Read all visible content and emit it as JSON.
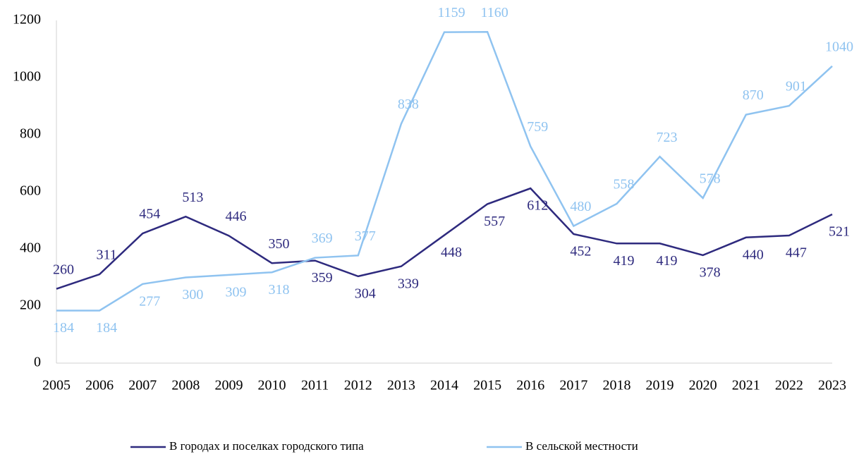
{
  "chart_data": {
    "type": "line",
    "categories": [
      "2005",
      "2006",
      "2007",
      "2008",
      "2009",
      "2010",
      "2011",
      "2012",
      "2013",
      "2014",
      "2015",
      "2016",
      "2017",
      "2018",
      "2019",
      "2020",
      "2021",
      "2022",
      "2023"
    ],
    "series": [
      {
        "name": "В городах и поселках городского типа",
        "color": "#2e2a7e",
        "values": [
          260,
          311,
          454,
          513,
          446,
          350,
          359,
          304,
          339,
          448,
          557,
          612,
          452,
          419,
          419,
          378,
          440,
          447,
          521
        ]
      },
      {
        "name": "В сельской местности",
        "color": "#8fc3f0",
        "values": [
          184,
          184,
          277,
          300,
          309,
          318,
          369,
          377,
          838,
          1159,
          1160,
          759,
          480,
          558,
          723,
          578,
          870,
          901,
          1040
        ]
      }
    ],
    "ylim": [
      0,
      1200
    ],
    "yticks": [
      0,
      200,
      400,
      600,
      800,
      1000,
      1200
    ],
    "grid": false,
    "legend": "bottom"
  }
}
